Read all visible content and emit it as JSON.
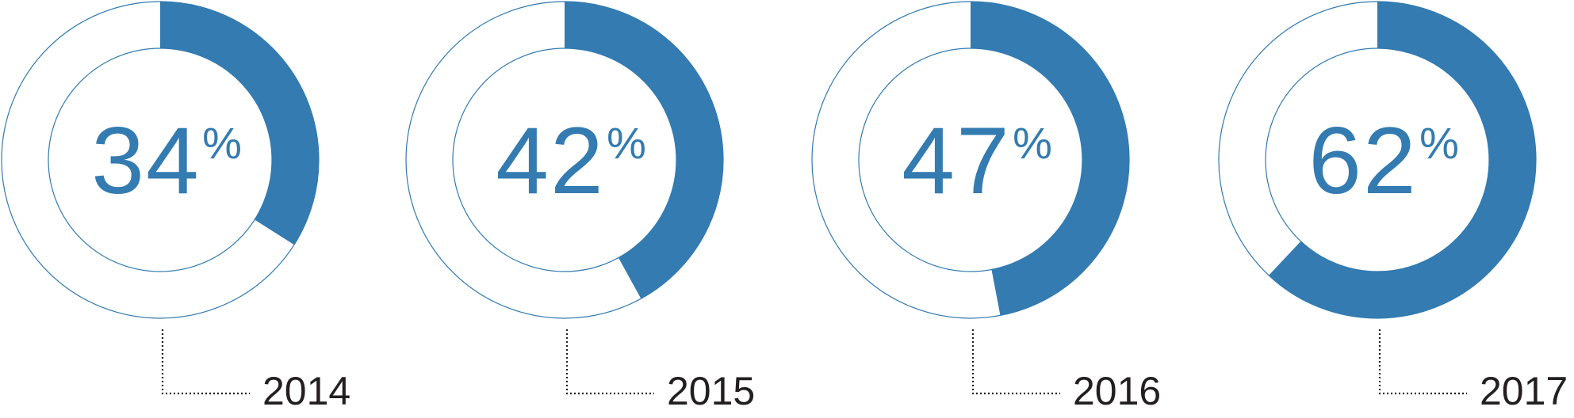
{
  "chart_data": {
    "type": "pie",
    "variant": "donut",
    "accent_color": "#337bb0",
    "outline_color": "#337bb0",
    "label_color": "#231f20",
    "unit": "%",
    "items": [
      {
        "category": "2014",
        "value": 34,
        "display": "34"
      },
      {
        "category": "2015",
        "value": 42,
        "display": "42"
      },
      {
        "category": "2016",
        "value": 47,
        "display": "47"
      },
      {
        "category": "2017",
        "value": 62,
        "display": "62"
      }
    ]
  }
}
